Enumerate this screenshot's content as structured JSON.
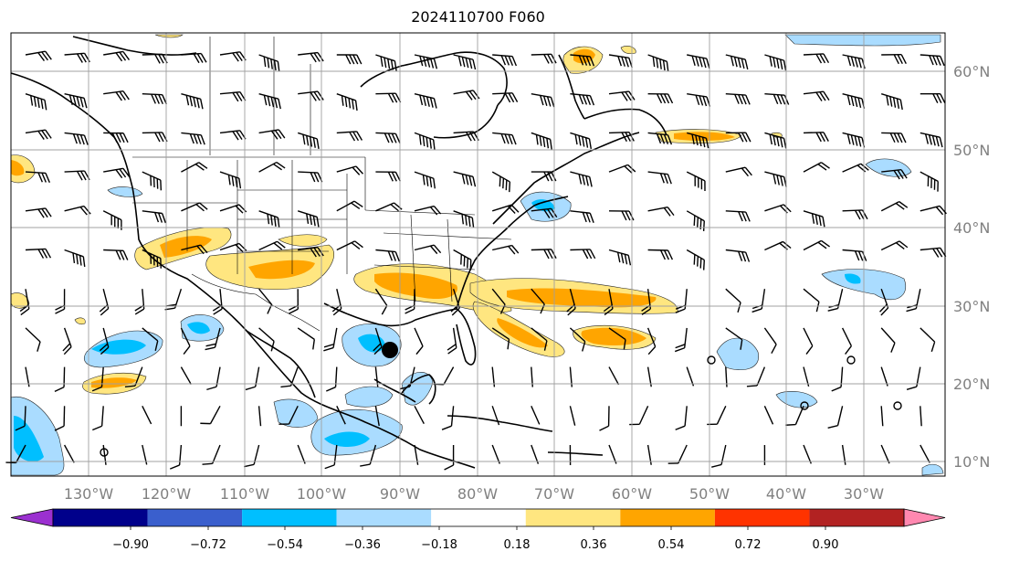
{
  "title": "2024110700 F060",
  "longitude_labels": [
    "130°W",
    "120°W",
    "110°W",
    "100°W",
    "90°W",
    "80°W",
    "70°W",
    "60°W",
    "50°W",
    "40°W",
    "30°W"
  ],
  "latitude_labels": [
    "60°N",
    "50°N",
    "40°N",
    "30°N",
    "20°N",
    "10°N"
  ],
  "colorbar": {
    "tick_labels": [
      "−0.90",
      "−0.72",
      "−0.54",
      "−0.36",
      "−0.18",
      "0.18",
      "0.36",
      "0.54",
      "0.72",
      "0.90"
    ],
    "colors": [
      "#9b30d0",
      "#00008b",
      "#3a5fcd",
      "#00bfff",
      "#aadcff",
      "#ffffff",
      "#ffe680",
      "#ffa500",
      "#ff3300",
      "#b22222",
      "#ff88b0"
    ]
  },
  "map": {
    "storm_marker": {
      "lon": -88.5,
      "lat": 24.0
    },
    "field_colors": {
      "light_blue": "#aadcff",
      "blue": "#00bfff",
      "light_yellow": "#ffe680",
      "orange": "#ffa500"
    }
  }
}
